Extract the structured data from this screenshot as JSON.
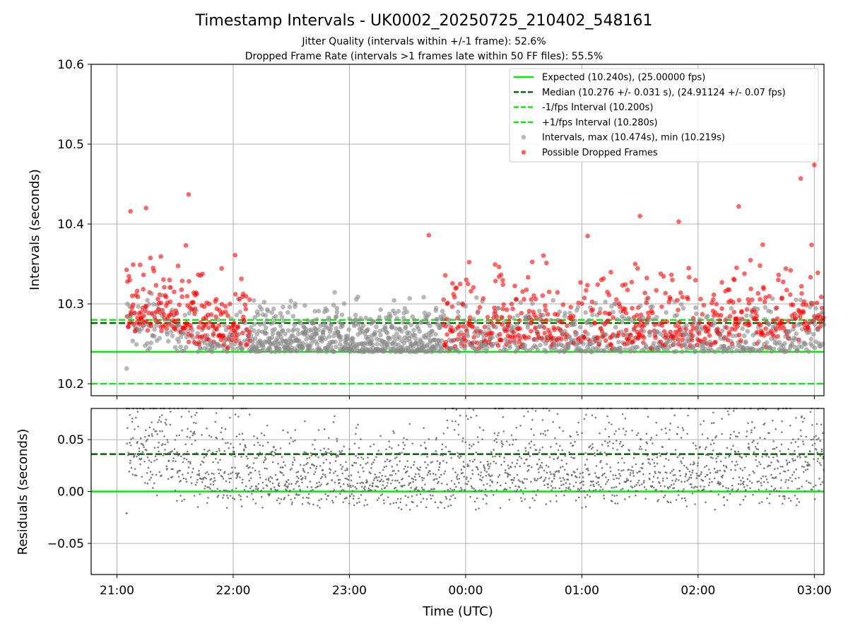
{
  "figure": {
    "title": "Timestamp Intervals - UK0002_20250725_210402_548161",
    "subtitle1": "Jitter Quality (intervals within +/-1 frame): 52.6%",
    "subtitle2": "Dropped Frame Rate (intervals >1 frames late within 50 FF files): 55.5%",
    "xlabel": "Time (UTC)",
    "colors": {
      "expected": "#00ee00",
      "median": "#006400",
      "interval_bounds": "#00ee00",
      "intervals": "#888888",
      "dropped": "#ff0000",
      "residuals": "#666666"
    }
  },
  "chart_data": [
    {
      "type": "scatter",
      "panel": "intervals",
      "ylabel": "Intervals (seconds)",
      "ylim": [
        10.185,
        10.6
      ],
      "xlim": [
        "21:00",
        "03:00"
      ],
      "x_domain_hours": [
        20.778,
        27.083
      ],
      "x_ticks": [
        "21:00",
        "22:00",
        "23:00",
        "00:00",
        "01:00",
        "02:00",
        "03:00"
      ],
      "y_ticks": [
        "10.2",
        "10.3",
        "10.4",
        "10.5",
        "10.6"
      ],
      "y_tick_values": [
        10.2,
        10.3,
        10.4,
        10.5,
        10.6
      ],
      "grid": true,
      "legend_position": "top-right",
      "reference_lines": [
        {
          "name": "Expected (10.240s), (25.00000 fps)",
          "y": 10.24,
          "style": "solid",
          "color_key": "expected"
        },
        {
          "name": "Median (10.276 +/- 0.031 s), (24.91124 +/- 0.07 fps)",
          "y": 10.276,
          "style": "dashed",
          "color_key": "median"
        },
        {
          "name": "-1/fps Interval (10.200s)",
          "y": 10.2,
          "style": "dashed",
          "color_key": "interval_bounds"
        },
        {
          "name": "+1/fps Interval (10.280s)",
          "y": 10.28,
          "style": "dashed",
          "color_key": "interval_bounds"
        }
      ],
      "series": [
        {
          "name": "Intervals, max (10.474s), min (10.219s)",
          "kind": "intervals",
          "count": 2100,
          "max": 10.474,
          "min": 10.219
        },
        {
          "name": "Possible Dropped Frames",
          "kind": "dropped"
        }
      ],
      "sample_points": [
        {
          "time": "21:05",
          "value": 10.219
        },
        {
          "time": "21:07",
          "value": 10.416
        },
        {
          "time": "21:15",
          "value": 10.42
        },
        {
          "time": "21:37",
          "value": 10.437
        },
        {
          "time": "22:01",
          "value": 10.361
        },
        {
          "time": "23:41",
          "value": 10.386
        },
        {
          "time": "01:03",
          "value": 10.385
        },
        {
          "time": "01:30",
          "value": 10.41
        },
        {
          "time": "01:50",
          "value": 10.403
        },
        {
          "time": "02:21",
          "value": 10.422
        },
        {
          "time": "02:53",
          "value": 10.457
        },
        {
          "time": "03:00",
          "value": 10.474
        }
      ]
    },
    {
      "type": "scatter",
      "panel": "residuals",
      "ylabel": "Residuals (seconds)",
      "ylim": [
        -0.08,
        0.08
      ],
      "x_ticks": [
        "21:00",
        "22:00",
        "23:00",
        "00:00",
        "01:00",
        "02:00",
        "03:00"
      ],
      "y_ticks": [
        "0.05",
        "0.00",
        "−0.05"
      ],
      "y_tick_values": [
        0.05,
        0.0,
        -0.05
      ],
      "grid": true,
      "reference_lines": [
        {
          "y": 0.0,
          "style": "solid",
          "color_key": "expected"
        },
        {
          "y": 0.036,
          "style": "dashed",
          "color_key": "median"
        }
      ],
      "series": [
        {
          "name": "Residuals",
          "count": 2100,
          "min": -0.021,
          "max": 0.08
        }
      ]
    }
  ]
}
